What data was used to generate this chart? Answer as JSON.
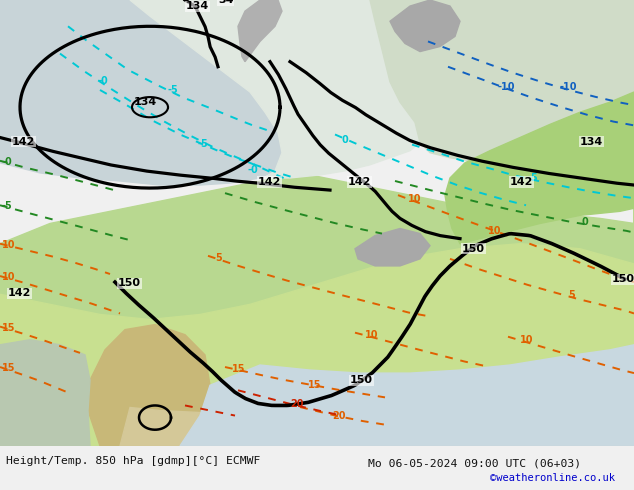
{
  "title_left": "Height/Temp. 850 hPa [gdmp][°C] ECMWF",
  "title_right": "Mo 06-05-2024 09:00 UTC (06+03)",
  "credit": "©weatheronline.co.uk",
  "figsize": [
    6.34,
    4.9
  ],
  "dpi": 100,
  "bottom_text_color": "#111111",
  "credit_color": "#0000cc"
}
